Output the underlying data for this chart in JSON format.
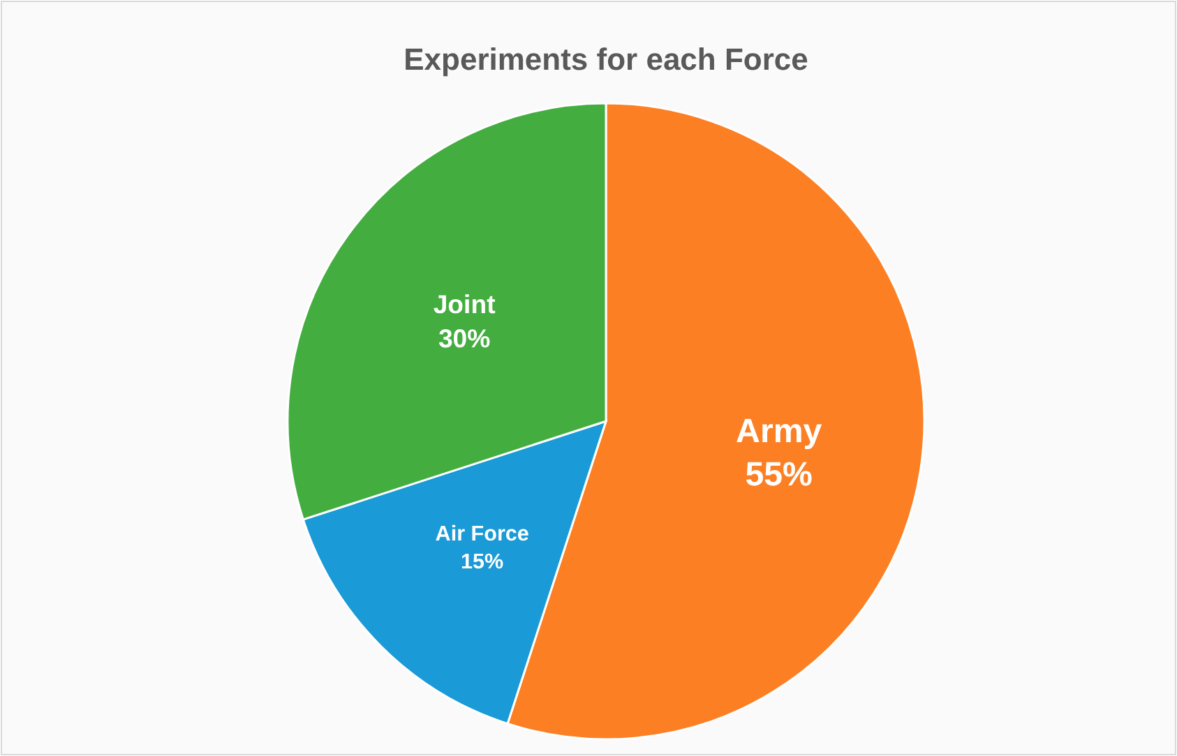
{
  "chart_data": {
    "type": "pie",
    "title": "Experiments for each Force",
    "categories": [
      "Army",
      "Air Force",
      "Joint"
    ],
    "values": [
      55,
      15,
      30
    ],
    "colors": [
      "#fd7f23",
      "#1a9ad6",
      "#44ad3f"
    ],
    "value_labels": [
      "55%",
      "15%",
      "30%"
    ],
    "legend": false
  }
}
